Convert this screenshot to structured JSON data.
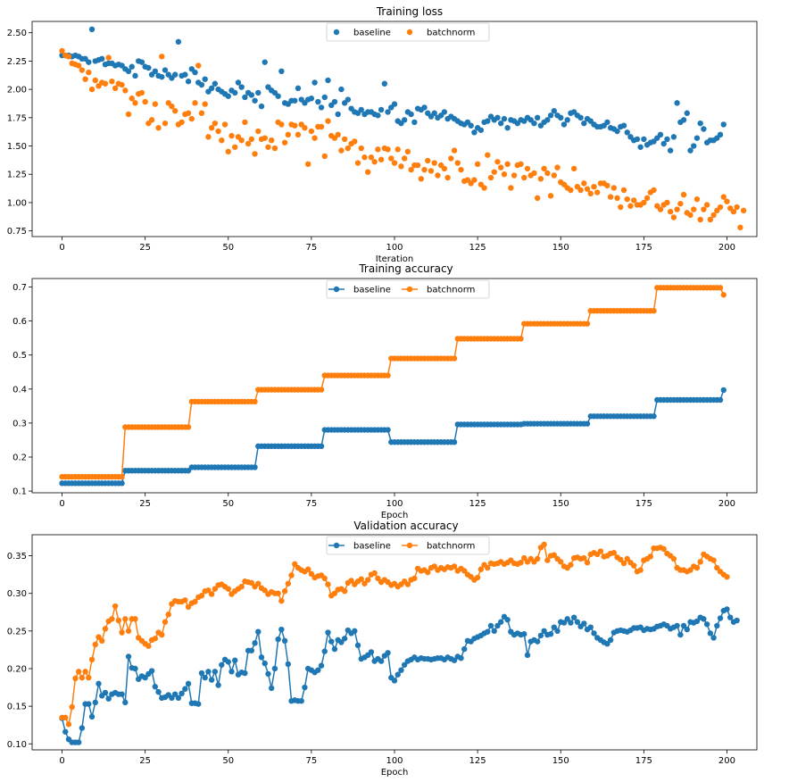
{
  "colors": {
    "baseline": "#1f77b4",
    "batchnorm": "#ff7f0e"
  },
  "chart_data": [
    {
      "type": "scatter",
      "title": "Training loss",
      "xlabel": "Iteration",
      "ylabel": "",
      "xlim": [
        -9,
        209
      ],
      "ylim": [
        0.7,
        2.6
      ],
      "xticks": [
        0,
        25,
        50,
        75,
        100,
        125,
        150,
        175,
        200
      ],
      "yticks": [
        0.75,
        1.0,
        1.25,
        1.5,
        1.75,
        2.0,
        2.25,
        2.5
      ],
      "ytick_format": 2,
      "legend": {
        "placement": "top-center",
        "entries": [
          "baseline",
          "batchnorm"
        ]
      },
      "markers": true,
      "lines": false,
      "series": [
        {
          "name": "baseline",
          "values": [
            2.3,
            2.3,
            2.3,
            2.29,
            2.3,
            2.29,
            2.27,
            2.27,
            2.24,
            2.53,
            2.25,
            2.26,
            2.27,
            2.22,
            2.23,
            2.23,
            2.21,
            2.22,
            2.21,
            2.18,
            2.16,
            2.2,
            2.12,
            2.25,
            2.24,
            2.2,
            2.19,
            2.13,
            2.16,
            2.12,
            2.11,
            2.17,
            2.13,
            2.1,
            2.13,
            2.42,
            2.12,
            2.13,
            2.07,
            2.18,
            2.15,
            2.06,
            2.04,
            2.09,
            1.98,
            2.01,
            2.05,
            2.0,
            1.98,
            1.96,
            1.94,
            1.99,
            1.97,
            2.06,
            2.02,
            1.93,
            1.97,
            1.95,
            1.9,
            1.97,
            1.85,
            2.24,
            2.02,
            1.99,
            1.97,
            1.94,
            2.16,
            1.88,
            1.87,
            1.9,
            1.9,
            2.01,
            1.91,
            1.88,
            1.91,
            1.92,
            2.06,
            1.89,
            1.84,
            1.93,
            2.08,
            1.86,
            1.89,
            1.78,
            2.0,
            1.88,
            1.91,
            1.83,
            1.8,
            1.79,
            1.82,
            1.78,
            1.8,
            1.8,
            1.78,
            1.77,
            1.82,
            2.05,
            1.8,
            1.84,
            1.87,
            1.72,
            1.7,
            1.73,
            1.8,
            1.78,
            1.71,
            1.83,
            1.82,
            1.84,
            1.79,
            1.76,
            1.79,
            1.75,
            1.77,
            1.8,
            1.74,
            1.76,
            1.74,
            1.72,
            1.7,
            1.69,
            1.71,
            1.68,
            1.62,
            1.66,
            1.64,
            1.71,
            1.72,
            1.76,
            1.73,
            1.75,
            1.7,
            1.74,
            1.66,
            1.73,
            1.72,
            1.7,
            1.73,
            1.72,
            1.75,
            1.73,
            1.7,
            1.75,
            1.68,
            1.71,
            1.73,
            1.77,
            1.81,
            1.77,
            1.75,
            1.69,
            1.73,
            1.79,
            1.8,
            1.77,
            1.75,
            1.7,
            1.74,
            1.72,
            1.69,
            1.67,
            1.67,
            1.68,
            1.71,
            1.66,
            1.65,
            1.63,
            1.67,
            1.68,
            1.62,
            1.58,
            1.55,
            1.56,
            1.49,
            1.56,
            1.51,
            1.53,
            1.54,
            1.57,
            1.6,
            1.52,
            1.56,
            1.46,
            1.58,
            1.88,
            1.71,
            1.73,
            1.79,
            1.46,
            1.5,
            1.57,
            1.7,
            1.65,
            1.53,
            1.55,
            1.55,
            1.57,
            1.6,
            1.69
          ]
        },
        {
          "name": "batchnorm",
          "values": [
            2.34,
            2.3,
            2.29,
            2.23,
            2.22,
            2.21,
            2.17,
            2.09,
            2.15,
            2.0,
            2.08,
            2.03,
            2.06,
            2.05,
            2.28,
            2.07,
            2.01,
            2.05,
            2.04,
            1.99,
            1.78,
            1.92,
            1.88,
            1.96,
            1.97,
            1.89,
            1.7,
            1.73,
            1.87,
            1.66,
            2.29,
            1.7,
            1.88,
            1.85,
            1.81,
            1.69,
            1.71,
            1.78,
            1.79,
            1.74,
            1.88,
            2.21,
            1.79,
            1.87,
            1.58,
            1.66,
            1.7,
            1.63,
            1.55,
            1.69,
            1.45,
            1.59,
            1.49,
            1.58,
            1.55,
            1.71,
            1.52,
            1.56,
            1.43,
            1.63,
            1.56,
            1.57,
            1.49,
            1.55,
            1.48,
            1.71,
            1.69,
            1.53,
            1.6,
            1.69,
            1.68,
            1.6,
            1.69,
            1.66,
            1.34,
            1.63,
            1.57,
            1.67,
            1.67,
            1.41,
            1.72,
            1.59,
            1.57,
            1.6,
            1.46,
            1.56,
            1.48,
            1.52,
            1.54,
            1.35,
            1.48,
            1.4,
            1.27,
            1.4,
            1.36,
            1.47,
            1.38,
            1.48,
            1.47,
            1.39,
            1.35,
            1.47,
            1.32,
            1.39,
            1.45,
            1.29,
            1.33,
            1.33,
            1.21,
            1.29,
            1.37,
            1.28,
            1.35,
            1.24,
            1.33,
            1.3,
            1.22,
            1.39,
            1.46,
            1.35,
            1.29,
            1.19,
            1.2,
            1.17,
            1.2,
            1.34,
            1.16,
            1.13,
            1.42,
            1.22,
            1.27,
            1.36,
            1.31,
            1.25,
            1.34,
            1.13,
            1.24,
            1.33,
            1.34,
            1.22,
            1.3,
            1.24,
            1.26,
            1.04,
            1.21,
            1.3,
            1.26,
            1.06,
            1.24,
            1.31,
            1.18,
            1.16,
            1.13,
            1.11,
            1.3,
            1.14,
            1.11,
            1.17,
            1.12,
            1.08,
            1.14,
            1.09,
            1.17,
            1.17,
            1.15,
            1.05,
            1.13,
            1.04,
            0.96,
            1.11,
            1.03,
            0.97,
            1.02,
            0.98,
            0.98,
            1.0,
            1.04,
            1.09,
            1.11,
            0.97,
            0.94,
            0.98,
            1.0,
            0.92,
            0.87,
            0.94,
            0.99,
            1.07,
            0.91,
            0.89,
            0.94,
            1.03,
            0.85,
            0.94,
            0.98,
            0.85,
            0.89,
            0.93,
            0.96,
            1.05,
            1.01,
            0.95,
            0.92,
            0.96,
            0.78,
            0.93
          ]
        }
      ]
    },
    {
      "type": "line",
      "title": "Training accuracy",
      "xlabel": "Epoch",
      "ylabel": "",
      "xlim": [
        -9,
        209
      ],
      "ylim": [
        0.095,
        0.725
      ],
      "xticks": [
        0,
        25,
        50,
        75,
        100,
        125,
        150,
        175,
        200
      ],
      "yticks": [
        0.1,
        0.2,
        0.3,
        0.4,
        0.5,
        0.6,
        0.7
      ],
      "ytick_format": 1,
      "legend": {
        "placement": "top-center",
        "entries": [
          "baseline",
          "batchnorm"
        ]
      },
      "markers": true,
      "lines": true,
      "series": [
        {
          "name": "baseline",
          "step_segments": [
            [
              0,
              0.123
            ],
            [
              19,
              0.16
            ],
            [
              39,
              0.17
            ],
            [
              59,
              0.232
            ],
            [
              79,
              0.28
            ],
            [
              99,
              0.244
            ],
            [
              119,
              0.296
            ],
            [
              139,
              0.298
            ],
            [
              159,
              0.32
            ],
            [
              179,
              0.368
            ],
            [
              199,
              0.397
            ]
          ]
        },
        {
          "name": "batchnorm",
          "step_segments": [
            [
              0,
              0.142
            ],
            [
              19,
              0.288
            ],
            [
              39,
              0.363
            ],
            [
              59,
              0.398
            ],
            [
              79,
              0.44
            ],
            [
              99,
              0.49
            ],
            [
              119,
              0.548
            ],
            [
              139,
              0.592
            ],
            [
              159,
              0.63
            ],
            [
              179,
              0.698
            ],
            [
              199,
              0.677
            ]
          ]
        }
      ]
    },
    {
      "type": "line",
      "title": "Validation accuracy",
      "xlabel": "Epoch",
      "ylabel": "",
      "xlim": [
        -9,
        209
      ],
      "ylim": [
        0.092,
        0.378
      ],
      "xticks": [
        0,
        25,
        50,
        75,
        100,
        125,
        150,
        175,
        200
      ],
      "yticks": [
        0.1,
        0.15,
        0.2,
        0.25,
        0.3,
        0.35
      ],
      "ytick_format": 2,
      "legend": {
        "placement": "top-center",
        "entries": [
          "baseline",
          "batchnorm"
        ]
      },
      "markers": true,
      "lines": true,
      "series": [
        {
          "name": "baseline",
          "values": [
            0.134,
            0.116,
            0.106,
            0.102,
            0.102,
            0.102,
            0.121,
            0.153,
            0.153,
            0.136,
            0.155,
            0.18,
            0.164,
            0.168,
            0.16,
            0.166,
            0.168,
            0.166,
            0.166,
            0.155,
            0.216,
            0.201,
            0.2,
            0.186,
            0.19,
            0.188,
            0.193,
            0.197,
            0.176,
            0.169,
            0.161,
            0.162,
            0.165,
            0.161,
            0.166,
            0.161,
            0.167,
            0.173,
            0.18,
            0.154,
            0.154,
            0.153,
            0.194,
            0.188,
            0.196,
            0.185,
            0.196,
            0.178,
            0.205,
            0.212,
            0.209,
            0.196,
            0.211,
            0.192,
            0.195,
            0.194,
            0.224,
            0.224,
            0.234,
            0.249,
            0.215,
            0.207,
            0.193,
            0.174,
            0.2,
            0.239,
            0.252,
            0.237,
            0.206,
            0.157,
            0.158,
            0.157,
            0.157,
            0.175,
            0.2,
            0.198,
            0.195,
            0.198,
            0.204,
            0.223,
            0.248,
            0.236,
            0.226,
            0.238,
            0.235,
            0.24,
            0.251,
            0.247,
            0.25,
            0.231,
            0.213,
            0.215,
            0.218,
            0.222,
            0.21,
            0.213,
            0.21,
            0.217,
            0.221,
            0.188,
            0.184,
            0.192,
            0.198,
            0.205,
            0.21,
            0.212,
            0.215,
            0.212,
            0.214,
            0.213,
            0.213,
            0.212,
            0.213,
            0.214,
            0.214,
            0.212,
            0.215,
            0.213,
            0.211,
            0.216,
            0.214,
            0.226,
            0.237,
            0.236,
            0.24,
            0.242,
            0.244,
            0.247,
            0.249,
            0.257,
            0.25,
            0.257,
            0.262,
            0.269,
            0.265,
            0.249,
            0.245,
            0.247,
            0.245,
            0.246,
            0.218,
            0.236,
            0.238,
            0.236,
            0.244,
            0.25,
            0.245,
            0.246,
            0.255,
            0.25,
            0.262,
            0.261,
            0.266,
            0.261,
            0.268,
            0.262,
            0.256,
            0.26,
            0.252,
            0.255,
            0.247,
            0.241,
            0.238,
            0.235,
            0.233,
            0.238,
            0.248,
            0.25,
            0.251,
            0.25,
            0.249,
            0.251,
            0.254,
            0.254,
            0.255,
            0.251,
            0.253,
            0.252,
            0.253,
            0.256,
            0.257,
            0.259,
            0.257,
            0.253,
            0.255,
            0.257,
            0.245,
            0.257,
            0.252,
            0.262,
            0.261,
            0.263,
            0.268,
            0.266,
            0.259,
            0.247,
            0.241,
            0.257,
            0.267,
            0.277,
            0.279,
            0.268,
            0.262,
            0.264
          ]
        },
        {
          "name": "batchnorm",
          "values": [
            0.135,
            0.135,
            0.126,
            0.149,
            0.187,
            0.196,
            0.188,
            0.196,
            0.188,
            0.212,
            0.232,
            0.242,
            0.237,
            0.253,
            0.263,
            0.266,
            0.283,
            0.264,
            0.248,
            0.266,
            0.25,
            0.266,
            0.266,
            0.241,
            0.237,
            0.233,
            0.23,
            0.238,
            0.24,
            0.248,
            0.245,
            0.262,
            0.272,
            0.286,
            0.29,
            0.289,
            0.289,
            0.291,
            0.282,
            0.287,
            0.289,
            0.295,
            0.297,
            0.303,
            0.304,
            0.299,
            0.306,
            0.311,
            0.312,
            0.309,
            0.306,
            0.299,
            0.303,
            0.306,
            0.309,
            0.316,
            0.315,
            0.314,
            0.309,
            0.313,
            0.307,
            0.304,
            0.299,
            0.302,
            0.3,
            0.3,
            0.29,
            0.303,
            0.313,
            0.324,
            0.339,
            0.334,
            0.331,
            0.329,
            0.332,
            0.326,
            0.321,
            0.323,
            0.324,
            0.32,
            0.312,
            0.297,
            0.3,
            0.305,
            0.306,
            0.303,
            0.314,
            0.317,
            0.312,
            0.316,
            0.319,
            0.313,
            0.318,
            0.325,
            0.327,
            0.32,
            0.315,
            0.318,
            0.315,
            0.311,
            0.313,
            0.309,
            0.312,
            0.316,
            0.312,
            0.318,
            0.32,
            0.333,
            0.33,
            0.331,
            0.328,
            0.334,
            0.336,
            0.331,
            0.334,
            0.332,
            0.335,
            0.334,
            0.336,
            0.33,
            0.333,
            0.33,
            0.325,
            0.322,
            0.318,
            0.321,
            0.332,
            0.338,
            0.334,
            0.34,
            0.339,
            0.34,
            0.342,
            0.339,
            0.341,
            0.344,
            0.34,
            0.339,
            0.341,
            0.347,
            0.342,
            0.346,
            0.342,
            0.346,
            0.361,
            0.365,
            0.344,
            0.35,
            0.351,
            0.346,
            0.342,
            0.336,
            0.334,
            0.338,
            0.347,
            0.348,
            0.346,
            0.347,
            0.341,
            0.352,
            0.354,
            0.352,
            0.356,
            0.349,
            0.35,
            0.353,
            0.354,
            0.348,
            0.345,
            0.34,
            0.346,
            0.341,
            0.337,
            0.329,
            0.331,
            0.344,
            0.346,
            0.349,
            0.36,
            0.36,
            0.361,
            0.359,
            0.353,
            0.35,
            0.346,
            0.334,
            0.331,
            0.331,
            0.329,
            0.331,
            0.336,
            0.334,
            0.342,
            0.352,
            0.349,
            0.346,
            0.344,
            0.334,
            0.329,
            0.325,
            0.322
          ]
        }
      ]
    }
  ]
}
